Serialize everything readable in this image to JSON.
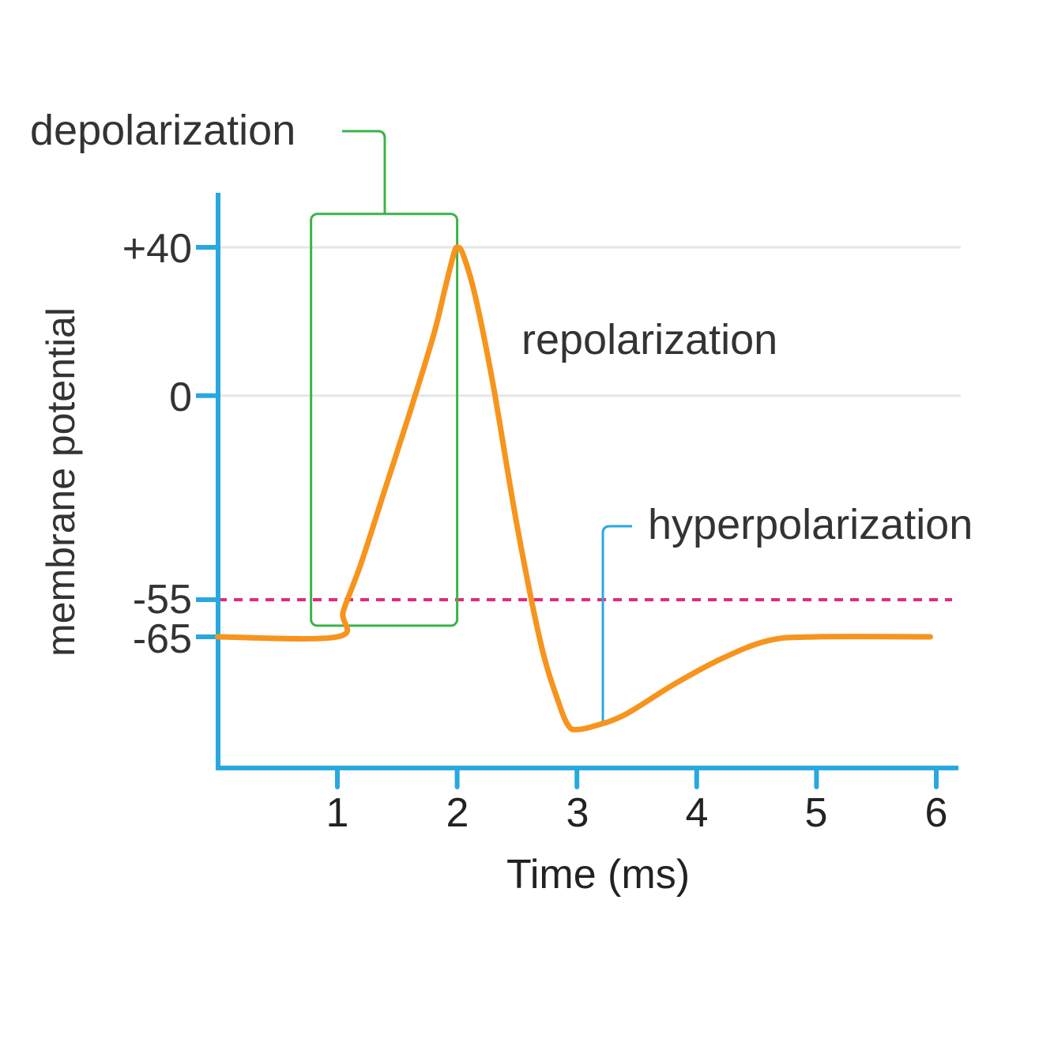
{
  "chart_data": {
    "type": "line",
    "xlabel": "Time (ms)",
    "ylabel": "membrane potential",
    "x_ticks": [
      "1",
      "2",
      "3",
      "4",
      "5",
      "6"
    ],
    "y_ticks": [
      "+40",
      "0",
      "-55",
      "-65"
    ],
    "y_tick_values": [
      40,
      0,
      -55,
      -65
    ],
    "gridlines_at": [
      40,
      0
    ],
    "threshold": {
      "value": -55,
      "style": "dashed",
      "color": "#e6287a"
    },
    "series": [
      {
        "color": "#f7941d",
        "points": [
          [
            0.0,
            -65
          ],
          [
            1.0,
            -65
          ],
          [
            1.05,
            -58
          ],
          [
            1.2,
            -45
          ],
          [
            1.4,
            -25
          ],
          [
            1.6,
            -5
          ],
          [
            1.8,
            16
          ],
          [
            1.9,
            29
          ],
          [
            1.97,
            38
          ],
          [
            2.0,
            40
          ],
          [
            2.05,
            38
          ],
          [
            2.15,
            27
          ],
          [
            2.3,
            3
          ],
          [
            2.5,
            -35
          ],
          [
            2.7,
            -67
          ],
          [
            2.85,
            -83
          ],
          [
            2.93,
            -89
          ],
          [
            3.0,
            -90
          ],
          [
            3.15,
            -89
          ],
          [
            3.4,
            -86
          ],
          [
            3.8,
            -78
          ],
          [
            4.2,
            -71
          ],
          [
            4.6,
            -66
          ],
          [
            5.0,
            -65
          ],
          [
            5.95,
            -65
          ]
        ]
      }
    ],
    "annotations": [
      {
        "text": "depolarization",
        "color": "#3cb34a",
        "box_x": [
          0.78,
          2.0
        ],
        "box_y": [
          -62,
          49
        ]
      },
      {
        "text": "repolarization"
      },
      {
        "text": "hyperpolarization",
        "color": "#29a8e0",
        "points_to": [
          3.2,
          -89
        ]
      }
    ],
    "xlim": [
      0,
      6.15
    ],
    "colors": {
      "axis": "#29a8e0",
      "grid": "#e6e6e6"
    }
  }
}
